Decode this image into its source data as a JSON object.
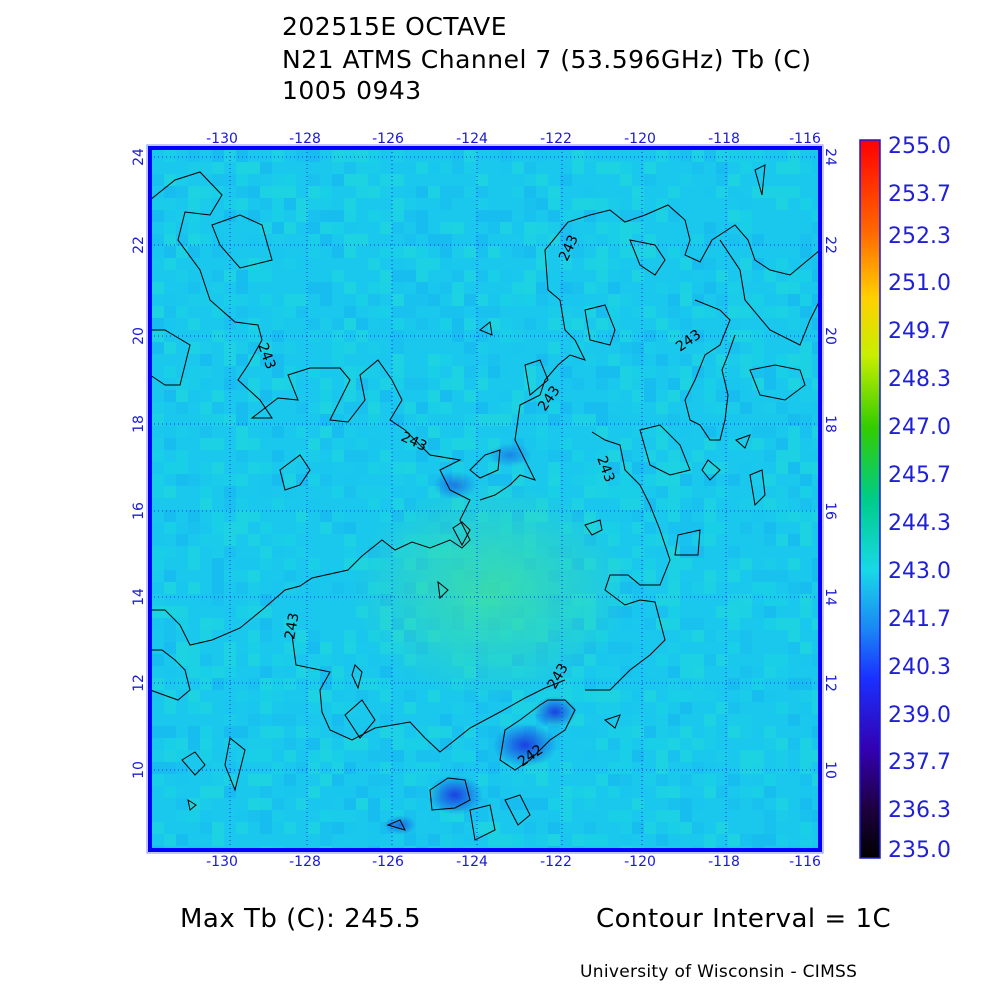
{
  "title": {
    "line1": "202515E OCTAVE",
    "line2": "N21 ATMS Channel 7 (53.596GHz) Tb (C)",
    "line3": "1005 0943"
  },
  "map": {
    "lon_ticks": [
      "-130",
      "-128",
      "-126",
      "-124",
      "-122",
      "-120",
      "-118",
      "-116"
    ],
    "lat_ticks": [
      "24",
      "22",
      "20",
      "18",
      "16",
      "14",
      "12",
      "10"
    ],
    "lon_range": [
      -132.0,
      -115.6
    ],
    "lat_range": [
      8.3,
      24.3
    ],
    "contour_labels": [
      "243",
      "243",
      "243",
      "243",
      "243",
      "243",
      "243",
      "242"
    ],
    "background_color": "#19d8e6",
    "grid_color": "#0a2cff",
    "frame_color": "#0000ff"
  },
  "colorbar": {
    "labels": [
      "255.0",
      "253.7",
      "252.3",
      "251.0",
      "249.7",
      "248.3",
      "247.0",
      "245.7",
      "244.3",
      "243.0",
      "241.7",
      "240.3",
      "239.0",
      "237.7",
      "236.3",
      "235.0"
    ],
    "colors": [
      "#ff0000",
      "#ff4400",
      "#ff8800",
      "#ffcc00",
      "#ddee00",
      "#88dd00",
      "#22cc00",
      "#00cc66",
      "#11dd99",
      "#19d8e6",
      "#1a9cf2",
      "#1a44ff",
      "#2200ee",
      "#3a00aa",
      "#2a0050",
      "#000000"
    ]
  },
  "footer": {
    "max_tb": "Max Tb (C): 245.5",
    "contour_interval": "Contour Interval = 1C",
    "credit": "University of Wisconsin - CIMSS"
  }
}
